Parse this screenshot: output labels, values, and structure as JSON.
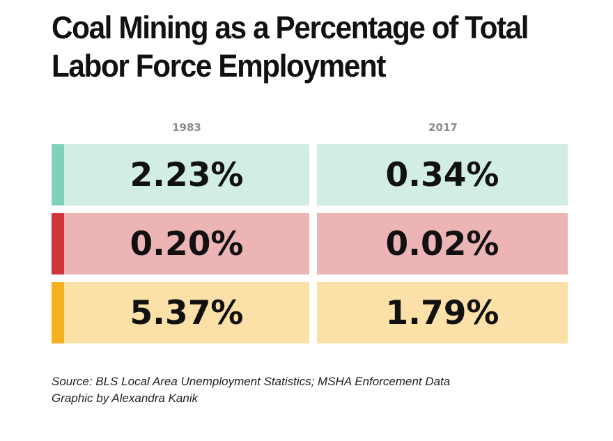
{
  "chart_data": {
    "type": "table",
    "title": "Coal Mining as a Percentage of Total Labor Force Employment",
    "columns": [
      "1983",
      "2017"
    ],
    "rows": [
      {
        "color": "#7fd0bd",
        "bg": "#d2ece6",
        "values": [
          "2.23%",
          "0.34%"
        ]
      },
      {
        "color": "#d1343b",
        "bg": "#edb4b5",
        "values": [
          "0.20%",
          "0.02%"
        ]
      },
      {
        "color": "#f4b223",
        "bg": "#fbe1a8",
        "values": [
          "5.37%",
          "1.79%"
        ]
      }
    ]
  },
  "footer": {
    "source": "Source: BLS Local Area Unemployment Statistics; MSHA Enforcement Data",
    "credit": "Graphic by Alexandra Kanik"
  }
}
